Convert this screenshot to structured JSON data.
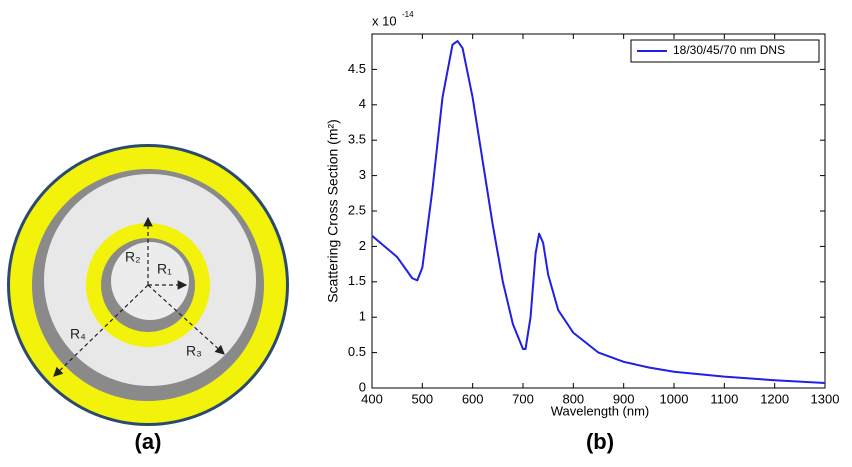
{
  "diagram": {
    "labels": [
      "R₁",
      "R₂",
      "R₃",
      "R₄"
    ],
    "panel_label": "(a)"
  },
  "chart_data": {
    "type": "line",
    "panel_label": "(b)",
    "xlabel": "Wavelength (nm)",
    "ylabel": "Scattering Cross Section (m²)",
    "y_multiplier": {
      "base": "x 10",
      "exponent": "-14"
    },
    "x": [
      400,
      450,
      480,
      490,
      500,
      520,
      540,
      560,
      570,
      580,
      600,
      620,
      640,
      660,
      680,
      700,
      705,
      715,
      725,
      732,
      740,
      750,
      770,
      800,
      850,
      900,
      950,
      1000,
      1100,
      1200,
      1300
    ],
    "series": [
      {
        "name": "18/30/45/70 nm DNS",
        "color": "#1f1fe6",
        "values": [
          2.15,
          1.85,
          1.55,
          1.52,
          1.7,
          2.8,
          4.1,
          4.85,
          4.9,
          4.8,
          4.1,
          3.2,
          2.3,
          1.5,
          0.9,
          0.55,
          0.55,
          1.0,
          1.9,
          2.18,
          2.05,
          1.6,
          1.1,
          0.78,
          0.5,
          0.37,
          0.29,
          0.23,
          0.16,
          0.11,
          0.07
        ]
      }
    ],
    "xlim": [
      400,
      1300
    ],
    "xticks": [
      400,
      500,
      600,
      700,
      800,
      900,
      1000,
      1100,
      1200,
      1300
    ],
    "ylim": [
      0,
      5
    ],
    "yticks": [
      0,
      0.5,
      1,
      1.5,
      2,
      2.5,
      3,
      3.5,
      4,
      4.5
    ],
    "legend": "upper right",
    "grid": false
  }
}
